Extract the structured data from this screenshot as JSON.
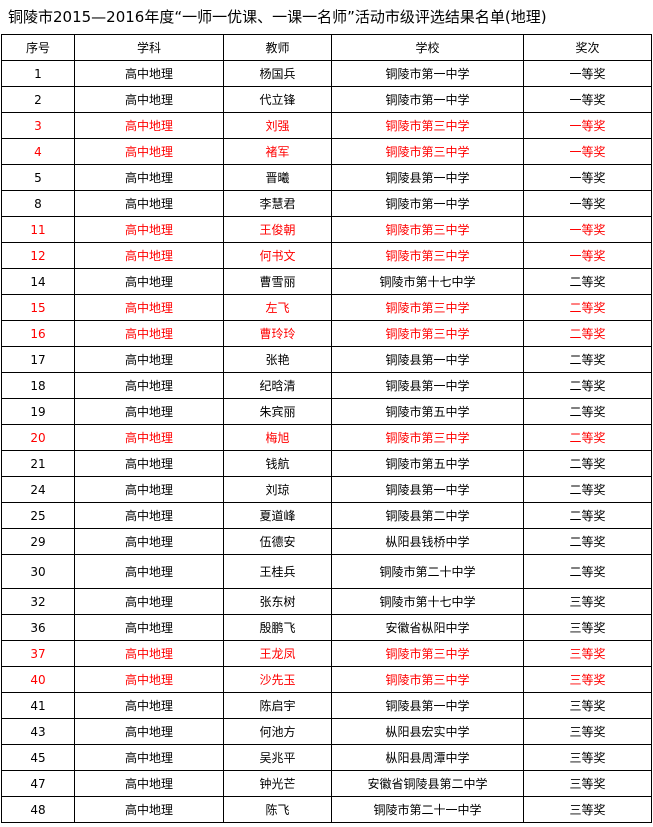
{
  "title": "铜陵市2015—2016年度“一师一优课、一课一名师”活动市级评选结果名单(地理)",
  "table": {
    "header": [
      "序号",
      "学科",
      "教师",
      "学校",
      "奖次"
    ],
    "rows": [
      [
        "1",
        "高中地理",
        "杨国兵",
        "铜陵市第一中学",
        "一等奖"
      ],
      [
        "2",
        "高中地理",
        "代立锋",
        "铜陵市第一中学",
        "一等奖"
      ],
      [
        "3",
        "高中地理",
        "刘强",
        "铜陵市第三中学",
        "一等奖"
      ],
      [
        "4",
        "高中地理",
        "褚军",
        "铜陵市第三中学",
        "一等奖"
      ],
      [
        "5",
        "高中地理",
        "晋曦",
        "铜陵县第一中学",
        "一等奖"
      ],
      [
        "8",
        "高中地理",
        "李慧君",
        "铜陵市第一中学",
        "一等奖"
      ],
      [
        "11",
        "高中地理",
        "王俊朝",
        "铜陵市第三中学",
        "一等奖"
      ],
      [
        "12",
        "高中地理",
        "何书文",
        "铜陵市第三中学",
        "一等奖"
      ],
      [
        "14",
        "高中地理",
        "曹雪丽",
        "铜陵市第十七中学",
        "二等奖"
      ],
      [
        "15",
        "高中地理",
        "左飞",
        "铜陵市第三中学",
        "二等奖"
      ],
      [
        "16",
        "高中地理",
        "曹玲玲",
        "铜陵市第三中学",
        "二等奖"
      ],
      [
        "17",
        "高中地理",
        "张艳",
        "铜陵县第一中学",
        "二等奖"
      ],
      [
        "18",
        "高中地理",
        "纪晗清",
        "铜陵县第一中学",
        "二等奖"
      ],
      [
        "19",
        "高中地理",
        "朱宾丽",
        "铜陵市第五中学",
        "二等奖"
      ],
      [
        "20",
        "高中地理",
        "梅旭",
        "铜陵市第三中学",
        "二等奖"
      ],
      [
        "21",
        "高中地理",
        "钱航",
        "铜陵市第五中学",
        "二等奖"
      ],
      [
        "24",
        "高中地理",
        "刘琼",
        "铜陵县第一中学",
        "二等奖"
      ],
      [
        "25",
        "高中地理",
        "夏道峰",
        "铜陵县第二中学",
        "二等奖"
      ],
      [
        "29",
        "高中地理",
        "伍德安",
        "枞阳县钱桥中学",
        "二等奖"
      ],
      [
        "30",
        "高中地理",
        "王桂兵",
        "铜陵市第二十中学",
        "二等奖"
      ],
      [
        "32",
        "高中地理",
        "张东树",
        "铜陵市第十七中学",
        "三等奖"
      ],
      [
        "36",
        "高中地理",
        "殷鹏飞",
        "安徽省枞阳中学",
        "三等奖"
      ],
      [
        "37",
        "高中地理",
        "王龙凤",
        "铜陵市第三中学",
        "三等奖"
      ],
      [
        "40",
        "高中地理",
        "沙先玉",
        "铜陵市第三中学",
        "三等奖"
      ],
      [
        "41",
        "高中地理",
        "陈启宇",
        "铜陵县第一中学",
        "三等奖"
      ],
      [
        "43",
        "高中地理",
        "何池方",
        "枞阳县宏实中学",
        "三等奖"
      ],
      [
        "45",
        "高中地理",
        "吴兆平",
        "枞阳县周潭中学",
        "三等奖"
      ],
      [
        "47",
        "高中地理",
        "钟光芒",
        "安徽省铜陵县第二中学",
        "三等奖"
      ],
      [
        "48",
        "高中地理",
        "陈飞",
        "铜陵市第二十一中学",
        "三等奖"
      ]
    ],
    "row_colors": [
      "#000000",
      "#000000",
      "#ff0000",
      "#ff0000",
      "#000000",
      "#000000",
      "#ff0000",
      "#ff0000",
      "#000000",
      "#ff0000",
      "#ff0000",
      "#000000",
      "#000000",
      "#000000",
      "#ff0000",
      "#000000",
      "#000000",
      "#000000",
      "#000000",
      "#000000",
      "#000000",
      "#000000",
      "#ff0000",
      "#ff0000",
      "#000000",
      "#000000",
      "#000000",
      "#000000",
      "#000000"
    ]
  }
}
